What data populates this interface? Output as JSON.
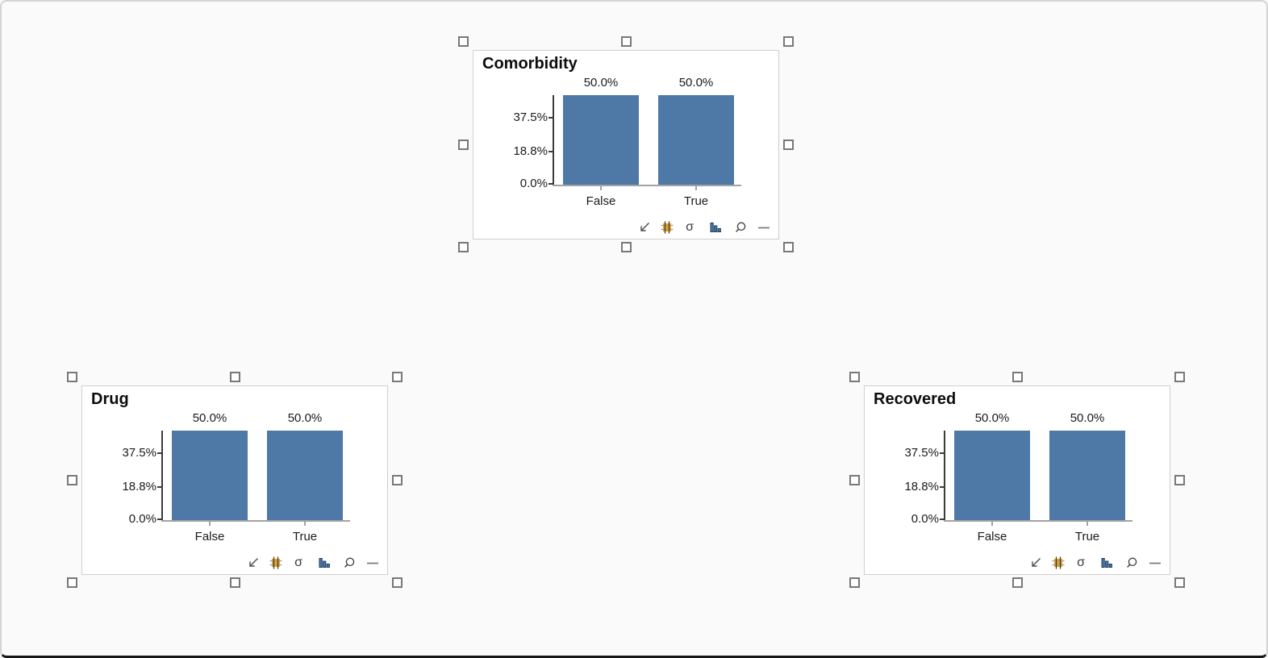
{
  "colors": {
    "bar_fill": "#4E79A7",
    "accent_orange": "#F2A20C",
    "canvas_background": "#fafafa",
    "panel_background": "#ffffff",
    "axis_spine": "#3b3b3b",
    "axis_baseline": "#a3a3a3"
  },
  "panels": [
    {
      "title": "Comorbidity",
      "chart": {
        "type": "bar",
        "categories": [
          "False",
          "True"
        ],
        "values": [
          50.0,
          50.0
        ],
        "value_labels": [
          "50.0%",
          "50.0%"
        ],
        "ytick_labels": [
          "37.5%",
          "18.8%",
          "0.0%"
        ],
        "yticks": [
          37.5,
          18.75,
          0.0
        ]
      },
      "toolbar_icons": [
        "resize-arrow-icon",
        "grid-icon",
        "sigma-icon",
        "bar-chart-icon",
        "magnifier-icon",
        "dash-icon"
      ]
    },
    {
      "title": "Drug",
      "chart": {
        "type": "bar",
        "categories": [
          "False",
          "True"
        ],
        "values": [
          50.0,
          50.0
        ],
        "value_labels": [
          "50.0%",
          "50.0%"
        ],
        "ytick_labels": [
          "37.5%",
          "18.8%",
          "0.0%"
        ],
        "yticks": [
          37.5,
          18.75,
          0.0
        ]
      },
      "toolbar_icons": [
        "resize-arrow-icon",
        "grid-icon",
        "sigma-icon",
        "bar-chart-icon",
        "magnifier-icon",
        "dash-icon"
      ]
    },
    {
      "title": "Recovered",
      "chart": {
        "type": "bar",
        "categories": [
          "False",
          "True"
        ],
        "values": [
          50.0,
          50.0
        ],
        "value_labels": [
          "50.0%",
          "50.0%"
        ],
        "ytick_labels": [
          "37.5%",
          "18.8%",
          "0.0%"
        ],
        "yticks": [
          37.5,
          18.75,
          0.0
        ]
      },
      "toolbar_icons": [
        "resize-arrow-icon",
        "grid-icon",
        "sigma-icon",
        "bar-chart-icon",
        "magnifier-icon",
        "dash-icon"
      ]
    }
  ],
  "sigma_glyph": "σ",
  "chart_data": [
    {
      "type": "bar",
      "title": "Comorbidity",
      "categories": [
        "False",
        "True"
      ],
      "values": [
        50.0,
        50.0
      ],
      "xlabel": "",
      "ylabel": "",
      "ylim": [
        0,
        56.25
      ],
      "yticks_percent": [
        0.0,
        18.75,
        37.5
      ],
      "grid": false,
      "legend": false
    },
    {
      "type": "bar",
      "title": "Drug",
      "categories": [
        "False",
        "True"
      ],
      "values": [
        50.0,
        50.0
      ],
      "xlabel": "",
      "ylabel": "",
      "ylim": [
        0,
        56.25
      ],
      "yticks_percent": [
        0.0,
        18.75,
        37.5
      ],
      "grid": false,
      "legend": false
    },
    {
      "type": "bar",
      "title": "Recovered",
      "categories": [
        "False",
        "True"
      ],
      "values": [
        50.0,
        50.0
      ],
      "xlabel": "",
      "ylabel": "",
      "ylim": [
        0,
        56.25
      ],
      "yticks_percent": [
        0.0,
        18.75,
        37.5
      ],
      "grid": false,
      "legend": false
    }
  ]
}
